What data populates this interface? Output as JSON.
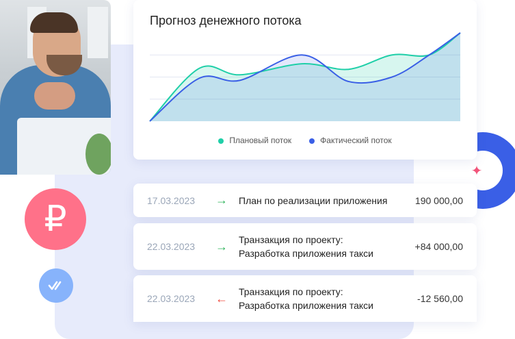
{
  "colors": {
    "plan": "#1fcfa8",
    "actual": "#3a5fe6",
    "incoming": "#2db35a",
    "outgoing": "#ef4a3e",
    "ruble_badge": "#ff7189",
    "check_badge": "#87b3fb"
  },
  "icons": {
    "ruble": "₽",
    "star": "✦",
    "incoming": "→",
    "outgoing": "←"
  },
  "chart_data": {
    "type": "area",
    "title": "Прогноз денежного потока",
    "grid": true,
    "legend": "bottom-center",
    "x": [
      0,
      1.6,
      2.9,
      4.9,
      6.4,
      7.8,
      9,
      10
    ],
    "ylim": [
      0,
      4
    ],
    "series": [
      {
        "name": "Плановый поток",
        "values": [
          0,
          2.4,
          2.1,
          2.6,
          2.35,
          3.0,
          3.0,
          4.0
        ]
      },
      {
        "name": "Фактический поток",
        "values": [
          0,
          1.95,
          1.85,
          3.0,
          1.8,
          2.0,
          3.0,
          4.0
        ]
      }
    ]
  },
  "transactions": [
    {
      "date": "17.03.2023",
      "direction": "incoming",
      "line1": "План по реализации приложения",
      "line2": "",
      "amount": "190 000,00"
    },
    {
      "date": "22.03.2023",
      "direction": "incoming",
      "line1": "Транзакция по проекту:",
      "line2": "Разработка приложения такси",
      "amount": "+84 000,00"
    },
    {
      "date": "22.03.2023",
      "direction": "outgoing",
      "line1": "Транзакция по проекту:",
      "line2": "Разработка приложения такси",
      "amount": "-12 560,00"
    }
  ]
}
